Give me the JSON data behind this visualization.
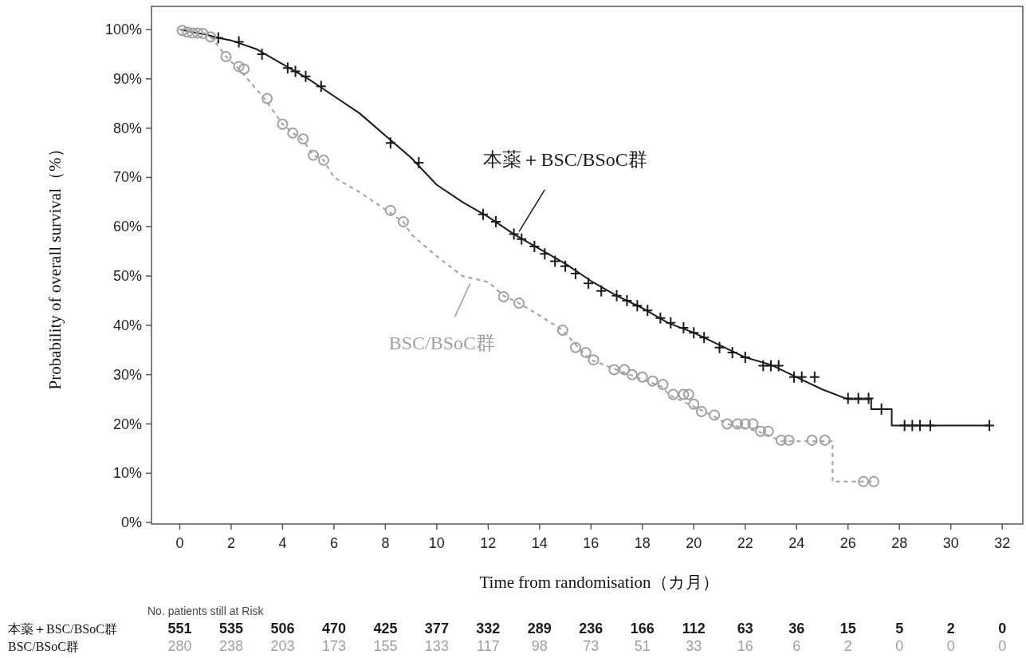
{
  "chart_data": {
    "type": "line",
    "xlabel": "Time from randomisation（カ月）",
    "ylabel": "Probability of overall survival（%）",
    "xlim": [
      -1.1,
      32.8
    ],
    "ylim": [
      -0.3,
      104.7
    ],
    "xticks": [
      0,
      2,
      4,
      6,
      8,
      10,
      12,
      14,
      16,
      18,
      20,
      22,
      24,
      26,
      28,
      30,
      32
    ],
    "yticks": [
      {
        "value": 0,
        "label": "0%"
      },
      {
        "value": 10,
        "label": "10%"
      },
      {
        "value": 20,
        "label": "20%"
      },
      {
        "value": 30,
        "label": "30%"
      },
      {
        "value": 40,
        "label": "40%"
      },
      {
        "value": 50,
        "label": "50%"
      },
      {
        "value": 60,
        "label": "60%"
      },
      {
        "value": 70,
        "label": "70%"
      },
      {
        "value": 80,
        "label": "80%"
      },
      {
        "value": 90,
        "label": "90%"
      },
      {
        "value": 100,
        "label": "100%"
      }
    ],
    "grid": false,
    "series": [
      {
        "name": "本薬＋BSC/BSoC群",
        "color": "#1a1a1a",
        "line_style": "solid",
        "x": [
          0,
          1,
          1.5,
          2,
          3,
          4,
          5,
          6,
          7,
          8,
          9,
          10,
          11,
          12,
          13,
          14,
          15,
          16,
          17,
          18,
          19,
          20,
          21,
          22,
          23,
          24,
          25,
          26,
          26.9,
          26.9,
          27.7,
          27.7,
          31.5
        ],
        "values": [
          100,
          99,
          98.3,
          97.8,
          96,
          93,
          90,
          86.5,
          83,
          78.5,
          74,
          68.5,
          65,
          62,
          58.5,
          55.5,
          52.5,
          49,
          46,
          43.5,
          40.5,
          38.5,
          36,
          33.5,
          32,
          29.5,
          27,
          25,
          25,
          23,
          23,
          19.7,
          19.7
        ]
      },
      {
        "name": "BSC/BSoC群",
        "color": "#a0a0a0",
        "line_style": "dashed",
        "x": [
          0,
          1,
          1.3,
          1.8,
          2.3,
          3.3,
          4,
          4.4,
          4.8,
          5.2,
          5.6,
          6,
          7,
          8,
          8.7,
          9,
          10,
          11,
          12,
          12.6,
          13.2,
          14,
          14.9,
          15.5,
          16,
          17,
          18,
          18.8,
          19,
          20.2,
          20.8,
          21.3,
          22.5,
          23.4,
          25.4,
          25.4,
          27.1
        ],
        "values": [
          100,
          99.2,
          98,
          94.5,
          92,
          86,
          80.8,
          79,
          77.5,
          74.5,
          73.5,
          70,
          67,
          63.5,
          61,
          58.5,
          54,
          50,
          48.8,
          46,
          44.5,
          42,
          39,
          35.5,
          33,
          31,
          29,
          27.5,
          26,
          23,
          21.5,
          20,
          18.5,
          16.5,
          16.5,
          8.3,
          8.3
        ]
      },
      {
        "type": "scatter",
        "color": "#1a1a1a",
        "marker": "cross",
        "x": [
          1.5,
          2.3,
          3.2,
          4.2,
          4.5,
          4.9,
          5.5,
          8.2,
          9.3,
          11.8,
          12.3,
          13,
          13.3,
          13.8,
          14.2,
          14.6,
          15,
          15.4,
          15.9,
          16.4,
          17,
          17.4,
          17.8,
          18.2,
          18.7,
          19.1,
          19.6,
          20,
          20.4,
          21,
          21.5,
          22,
          22.7,
          23,
          23.3,
          23.9,
          24.2,
          24.7,
          26,
          26.4,
          26.8,
          27.3,
          28.2,
          28.5,
          28.8,
          29.2,
          31.5
        ],
        "values": [
          98.3,
          97.5,
          95,
          92.2,
          91.5,
          90.5,
          88.5,
          77,
          73,
          62.5,
          61,
          58.5,
          57.5,
          56,
          54.5,
          53,
          52,
          50.5,
          48.5,
          47,
          46,
          45,
          44,
          43,
          41.5,
          40.5,
          39.5,
          38.5,
          37.5,
          35.5,
          34.5,
          33.5,
          31.8,
          31.8,
          31.8,
          29.5,
          29.5,
          29.5,
          25.2,
          25.2,
          25.2,
          23,
          19.7,
          19.7,
          19.7,
          19.7,
          19.7
        ]
      },
      {
        "type": "scatter",
        "color": "#a0a0a0",
        "marker": "circle",
        "x": [
          0.1,
          0.3,
          0.5,
          0.7,
          0.9,
          1.2,
          1.8,
          2.3,
          2.5,
          3.4,
          4,
          4.4,
          4.8,
          5.2,
          5.6,
          8.2,
          8.7,
          12.6,
          13.2,
          14.9,
          15.4,
          15.8,
          16.1,
          16.9,
          17.3,
          17.6,
          18,
          18.4,
          18.8,
          19.2,
          19.6,
          19.8,
          20,
          20.3,
          20.8,
          21.3,
          21.7,
          22,
          22.3,
          22.6,
          22.9,
          23.4,
          23.7,
          24.6,
          25.1,
          26.6,
          27
        ],
        "values": [
          99.8,
          99.5,
          99.3,
          99.3,
          99.2,
          98.5,
          94.5,
          92.5,
          92,
          86,
          80.8,
          79,
          77.8,
          74.5,
          73.5,
          63.3,
          61,
          45.8,
          44.5,
          39,
          35.5,
          34.5,
          33,
          31,
          31,
          30,
          29.5,
          28.7,
          28,
          26,
          26,
          26,
          24,
          22.5,
          21.8,
          20,
          20,
          20,
          20,
          18.5,
          18.5,
          16.7,
          16.7,
          16.7,
          16.7,
          8.3,
          8.3
        ]
      }
    ],
    "annotations": [
      "No. patients still at Risk",
      "本薬＋BSC/BSoC群",
      "551 535 506 470 425 377 332 289 236 166 112 63 36 15 5 2 0",
      "BSC/BSoC群",
      "280 238 203 173 155 133 117 98 73 51 33 16 6 2 0 0 0"
    ]
  }
}
